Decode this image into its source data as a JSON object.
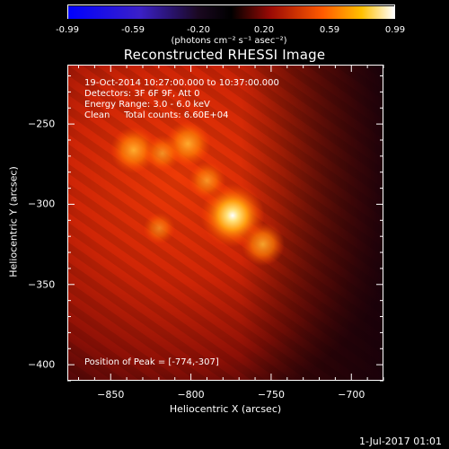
{
  "colorbar": {
    "ticks": [
      "-0.99",
      "-0.59",
      "-0.20",
      "0.20",
      "0.59",
      "0.99"
    ],
    "unit": "(photons cm⁻² s⁻¹ asec⁻²)"
  },
  "chart_data": {
    "type": "heatmap",
    "title": "Reconstructed RHESSI Image",
    "xlabel": "Heliocentric X (arcsec)",
    "ylabel": "Heliocentric Y (arcsec)",
    "xlim": [
      -877,
      -680
    ],
    "ylim": [
      -410,
      -213
    ],
    "xticks": [
      -850,
      -800,
      -750,
      -700
    ],
    "yticks": [
      -250,
      -300,
      -350,
      -400
    ],
    "annotations": [
      "19-Oct-2014 10:27:00.000 to 10:37:00.000",
      "Detectors: 3F 6F 9F, Att 0",
      "Energy Range: 3.0 - 6.0 keV",
      "Clean     Total counts: 6.60E+04"
    ],
    "peak_label": "Position of Peak = [-774,-307]",
    "sources": [
      {
        "x": -774,
        "y": -307,
        "intensity": 0.99
      },
      {
        "x": -755,
        "y": -325,
        "intensity": 0.55
      },
      {
        "x": -836,
        "y": -266,
        "intensity": 0.62
      },
      {
        "x": -802,
        "y": -262,
        "intensity": 0.6
      },
      {
        "x": -818,
        "y": -268,
        "intensity": 0.4
      },
      {
        "x": -790,
        "y": -285,
        "intensity": 0.42
      },
      {
        "x": -820,
        "y": -315,
        "intensity": 0.3
      }
    ]
  },
  "footer": {
    "date": "1-Jul-2017 01:01"
  }
}
